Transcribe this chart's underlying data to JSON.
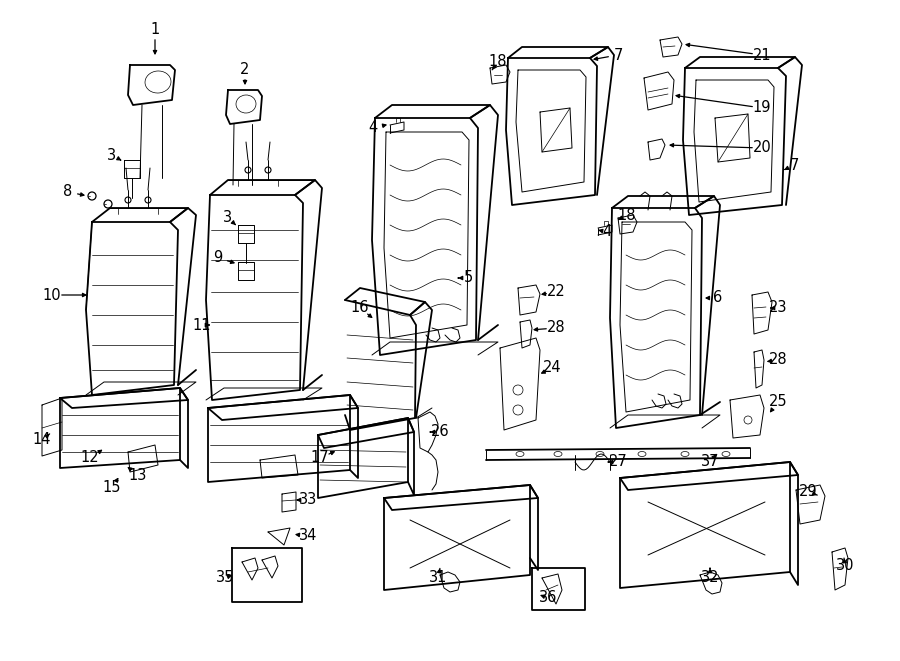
{
  "bg_color": "#ffffff",
  "line_color": "#000000",
  "lw_main": 1.3,
  "lw_thin": 0.7,
  "lw_detail": 0.5,
  "fontsize": 10.5
}
